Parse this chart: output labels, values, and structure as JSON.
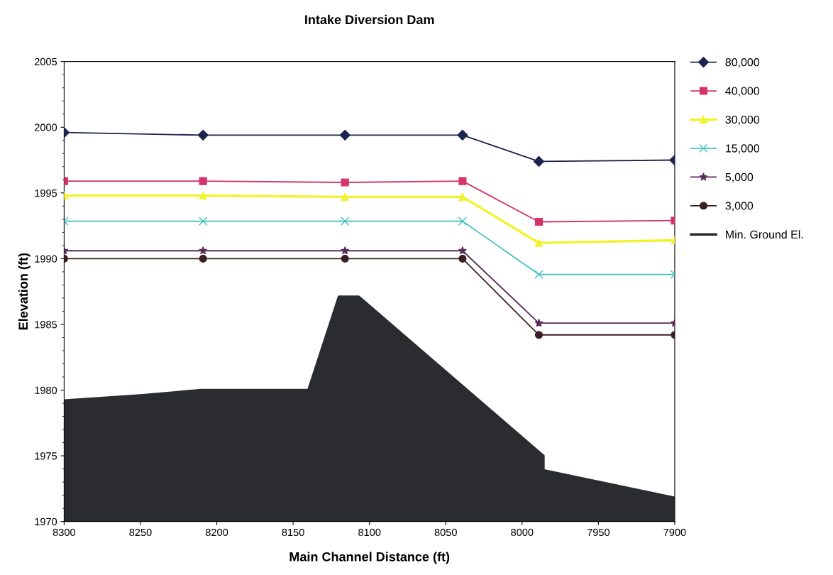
{
  "chart_data": {
    "type": "line",
    "title": "Intake Diversion Dam",
    "xlabel": "Main Channel Distance (ft)",
    "ylabel": "Elevation (ft)",
    "xlim": [
      8300,
      7900
    ],
    "xticks": [
      8300,
      8250,
      8200,
      8150,
      8100,
      8050,
      8000,
      7950,
      7900
    ],
    "ylim": [
      1970,
      2005
    ],
    "yticks": [
      1970,
      1975,
      1980,
      1985,
      1990,
      1995,
      2000,
      2005
    ],
    "grid": false,
    "legend": "right",
    "series": [
      {
        "name": "80,000",
        "color": "#1c2450",
        "marker": "diamond",
        "x": [
          8300,
          8209,
          8116,
          8039,
          7989,
          7900
        ],
        "values": [
          1999.6,
          1999.4,
          1999.4,
          1999.4,
          1997.4,
          1997.5
        ]
      },
      {
        "name": "40,000",
        "color": "#d6336c",
        "marker": "square",
        "x": [
          8300,
          8209,
          8116,
          8039,
          7989,
          7900
        ],
        "values": [
          1995.9,
          1995.9,
          1995.8,
          1995.9,
          1992.8,
          1992.9
        ]
      },
      {
        "name": "30,000",
        "color": "#f2f230",
        "marker": "triangle",
        "x": [
          8300,
          8209,
          8116,
          8039,
          7989,
          7900
        ],
        "values": [
          1994.8,
          1994.8,
          1994.7,
          1994.7,
          1991.2,
          1991.4
        ]
      },
      {
        "name": "15,000",
        "color": "#40c0c0",
        "marker": "cross",
        "x": [
          8300,
          8209,
          8116,
          8039,
          7989,
          7900
        ],
        "values": [
          1992.85,
          1992.85,
          1992.85,
          1992.85,
          1988.8,
          1988.8
        ]
      },
      {
        "name": "5,000",
        "color": "#5a2a5a",
        "marker": "star",
        "x": [
          8300,
          8209,
          8116,
          8039,
          7989,
          7900
        ],
        "values": [
          1990.6,
          1990.6,
          1990.6,
          1990.6,
          1985.1,
          1985.1
        ]
      },
      {
        "name": "3,000",
        "color": "#3a2020",
        "marker": "circle",
        "x": [
          8300,
          8209,
          8116,
          8039,
          7989,
          7900
        ],
        "values": [
          1990.0,
          1990.0,
          1990.0,
          1990.0,
          1984.2,
          1984.2
        ]
      },
      {
        "name": "Min. Ground El.",
        "type": "area",
        "color": "#2b2c30",
        "x": [
          8300,
          8250,
          8210,
          8140,
          8120,
          8107,
          7986,
          7986,
          7900
        ],
        "values": [
          1979.2,
          1979.6,
          1980.0,
          1980.0,
          1987.1,
          1987.1,
          1975.0,
          1973.9,
          1971.8
        ]
      }
    ]
  }
}
